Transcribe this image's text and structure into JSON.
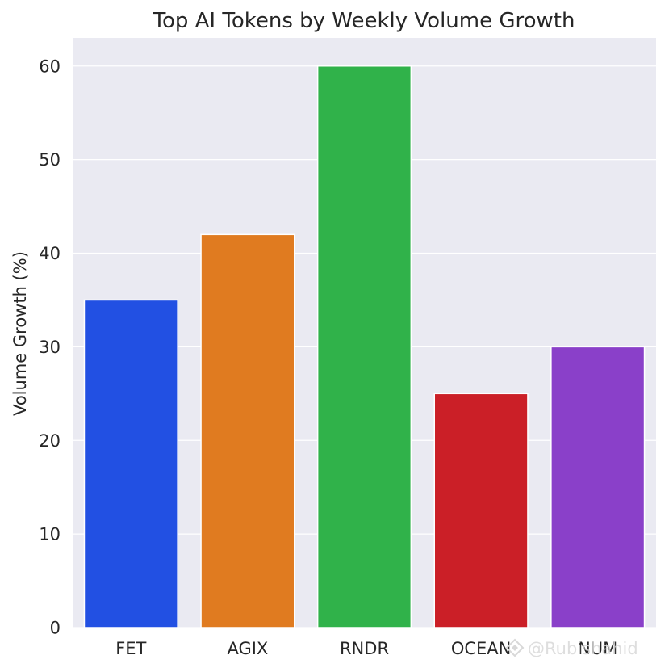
{
  "chart_data": {
    "type": "bar",
    "title": "Top AI Tokens by Weekly Volume Growth",
    "xlabel": "",
    "ylabel": "Volume Growth (%)",
    "categories": [
      "FET",
      "AGIX",
      "RNDR",
      "OCEAN",
      "NUM"
    ],
    "values": [
      35,
      42,
      60,
      25,
      30
    ],
    "colors": [
      "#2250e3",
      "#e07b20",
      "#30b24a",
      "#cb1f27",
      "#8a40c9"
    ],
    "ylim": [
      0,
      63
    ],
    "yticks": [
      0,
      10,
      20,
      30,
      40,
      50,
      60
    ],
    "grid": true,
    "legend": false,
    "background_color": "#eaeaf2",
    "grid_color": "#ffffff"
  },
  "watermark": {
    "text": "@Rubishahid",
    "icon": "diamond-logo-icon"
  }
}
